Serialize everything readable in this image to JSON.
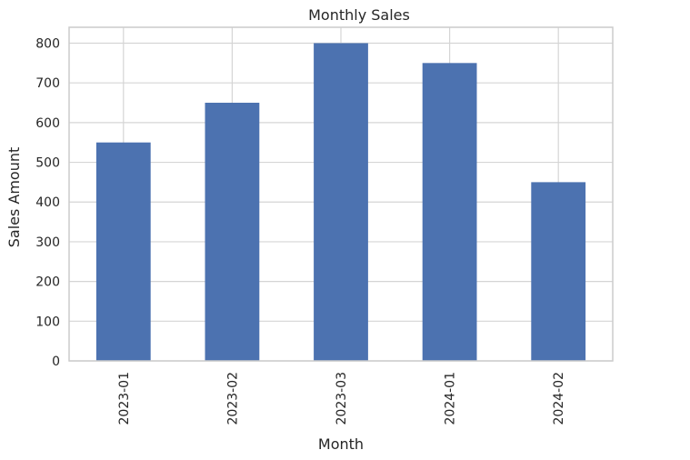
{
  "chart_data": {
    "type": "bar",
    "title": "Monthly Sales",
    "xlabel": "Month",
    "ylabel": "Sales Amount",
    "categories": [
      "2023-01",
      "2023-02",
      "2023-03",
      "2024-01",
      "2024-02"
    ],
    "values": [
      550,
      650,
      800,
      750,
      450
    ],
    "ylim": [
      0,
      840
    ],
    "yticks": [
      0,
      100,
      200,
      300,
      400,
      500,
      600,
      700,
      800
    ],
    "grid": true,
    "legend": "none",
    "bar_color": "#4c72b0",
    "grid_color": "#d5d5d5",
    "spine_color": "#cccccc"
  }
}
